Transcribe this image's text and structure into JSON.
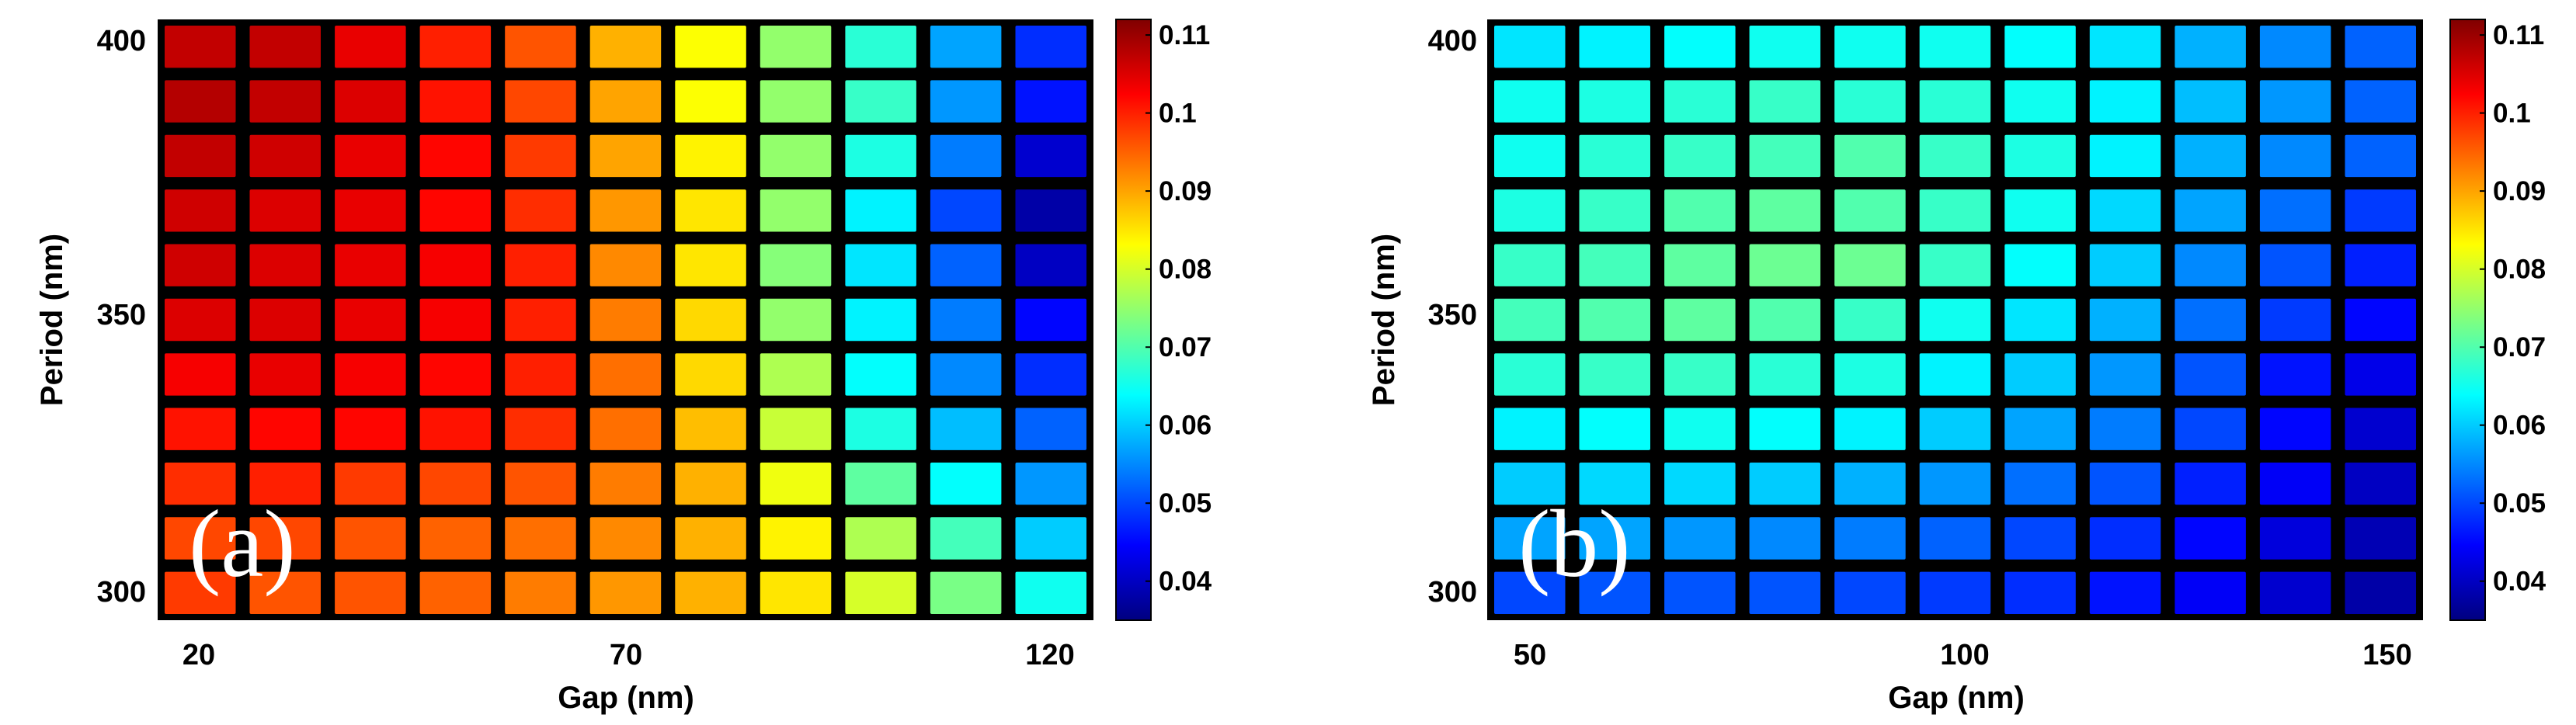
{
  "chart_data": [
    {
      "id": "a",
      "type": "heatmap",
      "panel_label": "(a)",
      "title": "",
      "xlabel": "Gap (nm)",
      "ylabel": "Period (nm)",
      "x_values": [
        20,
        30,
        40,
        50,
        60,
        70,
        80,
        90,
        100,
        110,
        120
      ],
      "y_values": [
        400,
        390,
        380,
        370,
        360,
        350,
        340,
        330,
        320,
        310,
        300
      ],
      "x_tick_labels": [
        "20",
        "70",
        "120"
      ],
      "y_tick_labels": [
        "400",
        "350",
        "300"
      ],
      "xlim": [
        15,
        125
      ],
      "ylim": [
        295,
        405
      ],
      "colorbar": {
        "min": 0.035,
        "max": 0.112,
        "ticks": [
          "0.11",
          "0.1",
          "0.09",
          "0.08",
          "0.07",
          "0.06",
          "0.05",
          "0.04"
        ]
      },
      "colors": {
        "background": "#000000",
        "cell_gap": "#000000"
      },
      "values": [
        [
          0.107,
          0.107,
          0.104,
          0.1,
          0.096,
          0.089,
          0.083,
          0.075,
          0.067,
          0.057,
          0.048
        ],
        [
          0.108,
          0.107,
          0.105,
          0.101,
          0.097,
          0.09,
          0.083,
          0.075,
          0.068,
          0.056,
          0.046
        ],
        [
          0.107,
          0.106,
          0.104,
          0.102,
          0.098,
          0.09,
          0.084,
          0.075,
          0.066,
          0.054,
          0.041
        ],
        [
          0.106,
          0.105,
          0.104,
          0.102,
          0.099,
          0.091,
          0.085,
          0.075,
          0.063,
          0.05,
          0.038
        ],
        [
          0.106,
          0.105,
          0.104,
          0.103,
          0.1,
          0.092,
          0.085,
          0.074,
          0.062,
          0.052,
          0.04
        ],
        [
          0.105,
          0.105,
          0.104,
          0.103,
          0.1,
          0.093,
          0.086,
          0.075,
          0.063,
          0.054,
          0.045
        ],
        [
          0.103,
          0.104,
          0.103,
          0.102,
          0.1,
          0.094,
          0.086,
          0.077,
          0.064,
          0.055,
          0.048
        ],
        [
          0.101,
          0.102,
          0.102,
          0.101,
          0.099,
          0.094,
          0.088,
          0.079,
          0.066,
          0.059,
          0.052
        ],
        [
          0.099,
          0.1,
          0.098,
          0.097,
          0.096,
          0.093,
          0.089,
          0.082,
          0.071,
          0.064,
          0.056
        ],
        [
          0.097,
          0.097,
          0.096,
          0.095,
          0.094,
          0.092,
          0.089,
          0.084,
          0.077,
          0.069,
          0.06
        ],
        [
          0.098,
          0.096,
          0.096,
          0.095,
          0.093,
          0.091,
          0.089,
          0.085,
          0.08,
          0.073,
          0.065
        ]
      ]
    },
    {
      "id": "b",
      "type": "heatmap",
      "panel_label": "(b)",
      "title": "",
      "xlabel": "Gap (nm)",
      "ylabel": "Period (nm)",
      "x_values": [
        50,
        60,
        70,
        80,
        90,
        100,
        110,
        120,
        130,
        140,
        150
      ],
      "y_values": [
        400,
        390,
        380,
        370,
        360,
        350,
        340,
        330,
        320,
        310,
        300
      ],
      "x_tick_labels": [
        "50",
        "100",
        "150"
      ],
      "y_tick_labels": [
        "400",
        "350",
        "300"
      ],
      "xlim": [
        45,
        155
      ],
      "ylim": [
        295,
        405
      ],
      "colorbar": {
        "min": 0.035,
        "max": 0.112,
        "ticks": [
          "0.11",
          "0.1",
          "0.09",
          "0.08",
          "0.07",
          "0.06",
          "0.05",
          "0.04"
        ]
      },
      "colors": {
        "background": "#000000",
        "cell_gap": "#000000"
      },
      "values": [
        [
          0.062,
          0.063,
          0.064,
          0.065,
          0.065,
          0.065,
          0.064,
          0.062,
          0.058,
          0.055,
          0.052
        ],
        [
          0.065,
          0.066,
          0.067,
          0.068,
          0.067,
          0.067,
          0.065,
          0.063,
          0.059,
          0.056,
          0.052
        ],
        [
          0.065,
          0.067,
          0.068,
          0.069,
          0.07,
          0.068,
          0.066,
          0.063,
          0.058,
          0.055,
          0.052
        ],
        [
          0.066,
          0.068,
          0.07,
          0.071,
          0.07,
          0.068,
          0.065,
          0.061,
          0.057,
          0.053,
          0.049
        ],
        [
          0.068,
          0.069,
          0.071,
          0.072,
          0.072,
          0.068,
          0.064,
          0.06,
          0.055,
          0.051,
          0.047
        ],
        [
          0.069,
          0.07,
          0.071,
          0.07,
          0.068,
          0.065,
          0.062,
          0.058,
          0.053,
          0.049,
          0.045
        ],
        [
          0.067,
          0.068,
          0.068,
          0.067,
          0.066,
          0.063,
          0.06,
          0.056,
          0.051,
          0.046,
          0.043
        ],
        [
          0.063,
          0.064,
          0.065,
          0.064,
          0.063,
          0.06,
          0.057,
          0.054,
          0.05,
          0.045,
          0.041
        ],
        [
          0.06,
          0.061,
          0.061,
          0.06,
          0.058,
          0.056,
          0.053,
          0.051,
          0.047,
          0.044,
          0.04
        ],
        [
          0.057,
          0.057,
          0.056,
          0.055,
          0.054,
          0.052,
          0.05,
          0.048,
          0.045,
          0.042,
          0.039
        ],
        [
          0.05,
          0.051,
          0.051,
          0.051,
          0.05,
          0.049,
          0.048,
          0.046,
          0.044,
          0.041,
          0.038
        ]
      ]
    }
  ]
}
